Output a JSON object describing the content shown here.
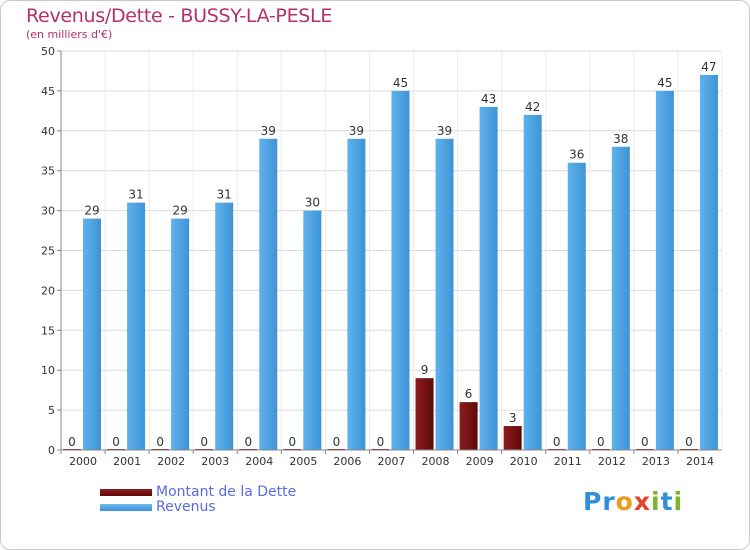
{
  "chart_data": {
    "type": "bar",
    "title": "Revenus/Dette - BUSSY-LA-PESLE",
    "subtitle": "(en milliers d'€)",
    "categories": [
      "2000",
      "2001",
      "2002",
      "2003",
      "2004",
      "2005",
      "2006",
      "2007",
      "2008",
      "2009",
      "2010",
      "2011",
      "2012",
      "2013",
      "2014"
    ],
    "series": [
      {
        "name": "Montant de la Dette",
        "color": "#7a1010",
        "values": [
          0,
          0,
          0,
          0,
          0,
          0,
          0,
          0,
          9,
          6,
          3,
          0,
          0,
          0,
          0
        ]
      },
      {
        "name": "Revenus",
        "color": "#4aa3e6",
        "values": [
          29,
          31,
          29,
          31,
          39,
          30,
          39,
          45,
          39,
          43,
          42,
          36,
          38,
          45,
          47
        ]
      }
    ],
    "ylim": [
      0,
      50
    ],
    "yticks": [
      0,
      5,
      10,
      15,
      20,
      25,
      30,
      35,
      40,
      45,
      50
    ],
    "grid": true,
    "legend_position": "bottom-left"
  },
  "logo": {
    "text": "Proxiti",
    "colors": [
      "#2f8fd8",
      "#2f8fd8",
      "#f09a1c",
      "#e8432a",
      "#7ab52a",
      "#2f8fd8",
      "#7ab52a"
    ]
  }
}
